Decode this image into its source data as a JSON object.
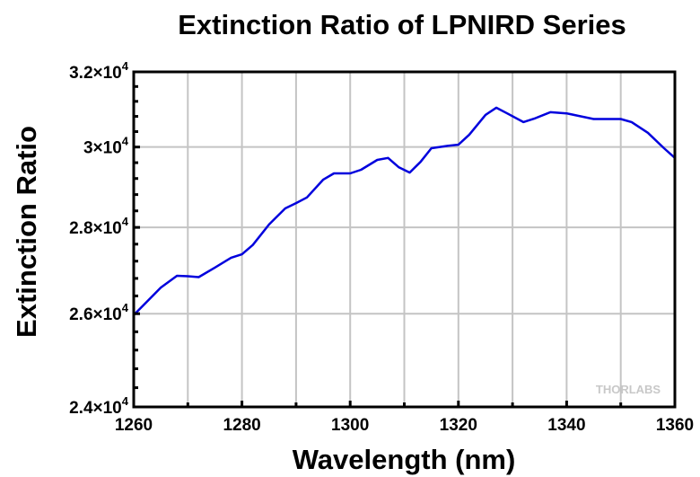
{
  "chart_data": {
    "type": "line",
    "title": "Extinction Ratio of LPNIRD Series",
    "xlabel": "Wavelength (nm)",
    "ylabel": "Extinction Ratio",
    "xlim": [
      1260,
      1360
    ],
    "ylim": [
      24000,
      32000
    ],
    "yscale": "log",
    "grid": true,
    "xticks": [
      1260,
      1280,
      1300,
      1320,
      1340,
      1360
    ],
    "xtick_labels": [
      "1260",
      "1280",
      "1300",
      "1320",
      "1340",
      "1360"
    ],
    "yticks": [
      24000,
      26000,
      28000,
      30000,
      32000
    ],
    "ytick_labels": [
      {
        "mantissa": "2.4×10",
        "exp": "4"
      },
      {
        "mantissa": "2.6×10",
        "exp": "4"
      },
      {
        "mantissa": "2.8×10",
        "exp": "4"
      },
      {
        "mantissa": "3×10",
        "exp": "4"
      },
      {
        "mantissa": "3.2×10",
        "exp": "4"
      }
    ],
    "line_color": "#0000dd",
    "series": [
      {
        "x": [
          1260,
          1265,
          1268,
          1270,
          1272,
          1275,
          1278,
          1280,
          1282,
          1285,
          1288,
          1290,
          1292,
          1295,
          1297,
          1300,
          1302,
          1305,
          1307,
          1309,
          1311,
          1313,
          1315,
          1318,
          1320,
          1322,
          1325,
          1327,
          1329,
          1332,
          1334,
          1337,
          1340,
          1345,
          1350,
          1352,
          1355,
          1358,
          1360
        ],
        "y": [
          25970,
          26590,
          26860,
          26850,
          26830,
          27050,
          27280,
          27360,
          27580,
          28070,
          28460,
          28590,
          28730,
          29170,
          29330,
          29330,
          29420,
          29670,
          29720,
          29480,
          29350,
          29620,
          29970,
          30030,
          30060,
          30320,
          30840,
          31030,
          30880,
          30650,
          30740,
          30910,
          30880,
          30730,
          30730,
          30650,
          30370,
          29970,
          29720
        ]
      }
    ]
  },
  "watermark": "THORLABS"
}
